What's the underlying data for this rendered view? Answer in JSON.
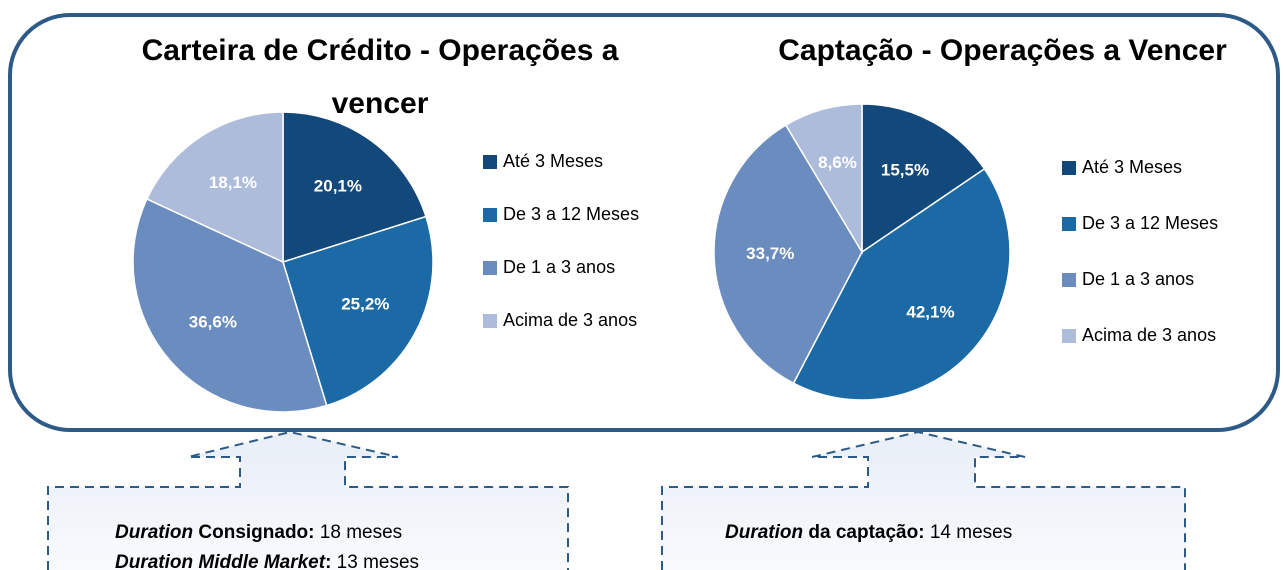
{
  "chart_data": [
    {
      "type": "pie",
      "title": "Carteira de Crédito - Operações a vencer",
      "categories": [
        "Até 3 Meses",
        "De 3 a 12 Meses",
        "De 1 a 3 anos",
        "Acima de 3 anos"
      ],
      "values": [
        20.1,
        25.2,
        36.6,
        18.1
      ],
      "value_labels": [
        "20,1%",
        "25,2%",
        "36,6%",
        "18,1%"
      ],
      "colors": [
        "#12487a",
        "#1b6aa6",
        "#6a8cbf",
        "#aebcdc"
      ]
    },
    {
      "type": "pie",
      "title": "Captação - Operações a Vencer",
      "categories": [
        "Até 3 Meses",
        "De 3 a 12 Meses",
        "De 1 a 3 anos",
        "Acima de 3 anos"
      ],
      "values": [
        15.5,
        42.1,
        33.7,
        8.6
      ],
      "value_labels": [
        "15,5%",
        "42,1%",
        "33,7%",
        "8,6%"
      ],
      "colors": [
        "#12487a",
        "#1b6aa6",
        "#6a8cbf",
        "#aebcdc"
      ]
    }
  ],
  "notes": [
    [
      [
        {
          "text": "Duration",
          "style": "bold-italic"
        },
        {
          "text": " Consignado:",
          "style": "bold"
        },
        {
          "text": " 18 meses",
          "style": "normal"
        }
      ],
      [
        {
          "text": "Duration Middle Market",
          "style": "bold-italic"
        },
        {
          "text": ":",
          "style": "bold"
        },
        {
          "text": " 13 meses",
          "style": "normal"
        }
      ]
    ],
    [
      [
        {
          "text": "Duration",
          "style": "bold-italic"
        },
        {
          "text": " da captação:",
          "style": "bold"
        },
        {
          "text": " 14 meses",
          "style": "normal"
        }
      ]
    ]
  ]
}
